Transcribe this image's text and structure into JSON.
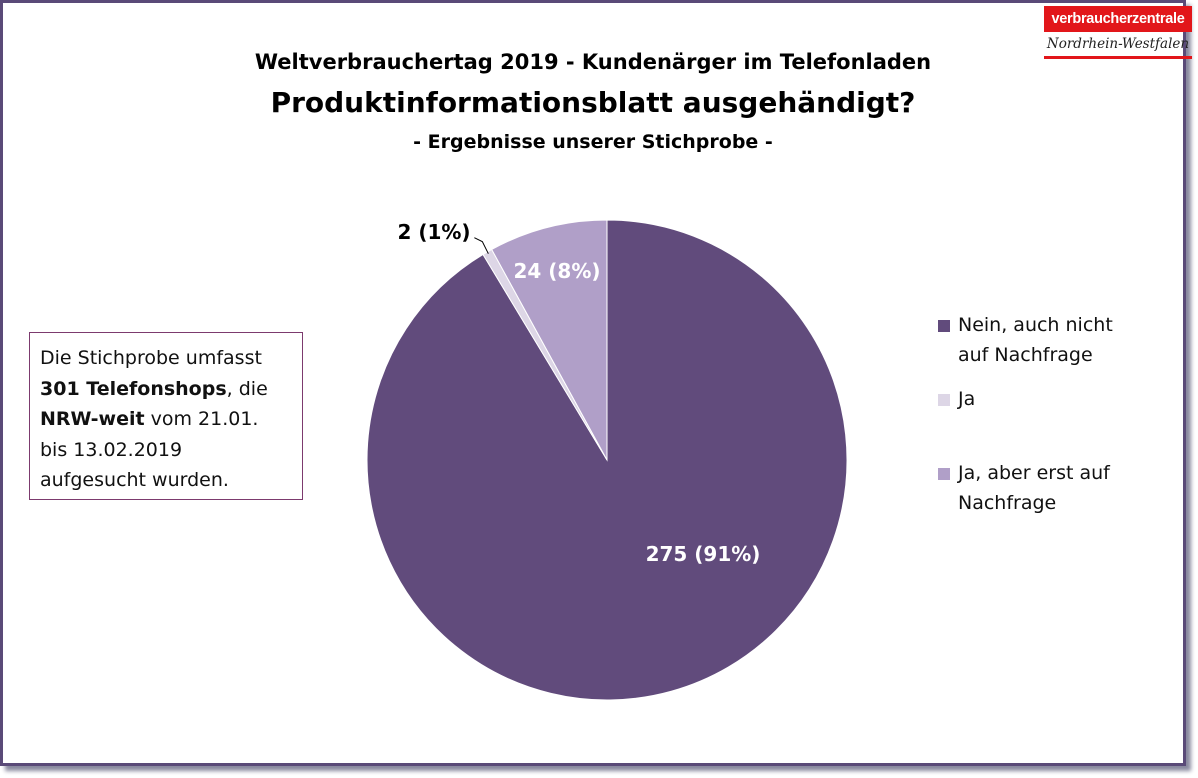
{
  "logo": {
    "top": "verbraucherzentrale",
    "bottom": "Nordrhein-Westfalen"
  },
  "titles": {
    "line1": "Weltverbrauchertag 2019 - Kundenärger im Telefonladen",
    "line2": "Produktinformationsblatt ausgehändigt?",
    "line3": "- Ergebnisse unserer Stichprobe -"
  },
  "info": {
    "t1": "Die Stichprobe umfasst",
    "b1": "301 Telefonshops",
    "t2": ", die",
    "b2": "NRW-weit",
    "t3": " vom 21.01.",
    "t4": "bis 13.02.2019",
    "t5": "aufgesucht wurden."
  },
  "colors": {
    "frame": "#5a4a78",
    "nein": "#614b7c",
    "ja": "#ddd6e6",
    "ja_nachfrage": "#b09fc8",
    "logo_red": "#e2161a"
  },
  "chart_data": {
    "type": "pie",
    "title": "Produktinformationsblatt ausgehändigt?",
    "legend_position": "right",
    "start": "top, clockwise",
    "slices": [
      {
        "name": "Nein, auch nicht auf Nachfrage",
        "value": 275,
        "label": "275 (91%)",
        "color": "#614b7c",
        "label_color": "#ffffff"
      },
      {
        "name": "Ja",
        "value": 2,
        "label": "2 (1%)",
        "color": "#ddd6e6",
        "label_color": "#000000"
      },
      {
        "name": "Ja, aber erst auf Nachfrage",
        "value": 24,
        "label": "24 (8%)",
        "color": "#b09fc8",
        "label_color": "#ffffff"
      }
    ]
  },
  "legend": [
    {
      "line1": "Nein, auch nicht",
      "line2": "auf Nachfrage"
    },
    {
      "line1": "Ja",
      "line2": ""
    },
    {
      "line1": "Ja, aber erst auf",
      "line2": "Nachfrage"
    }
  ]
}
